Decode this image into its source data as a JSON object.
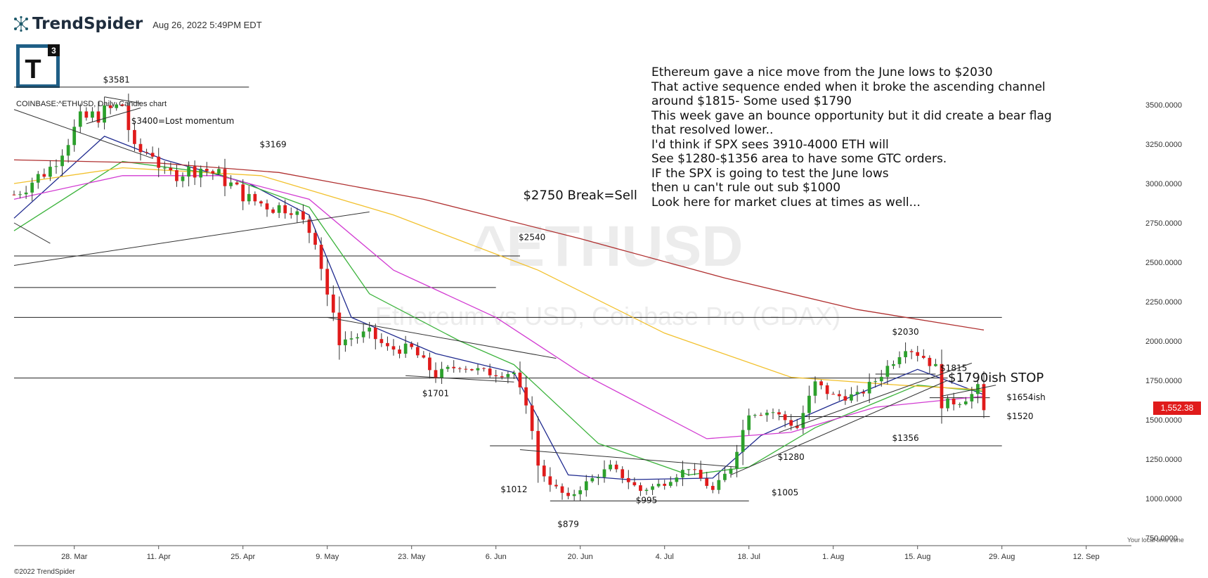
{
  "header": {
    "brand": "TrendSpider",
    "date": "Aug 26, 2022 5:49PM EDT",
    "logo_letter": "T",
    "logo_superscript": "3",
    "symbol_line": "COINBASE:^ETHUSD, Daily, Candles chart"
  },
  "watermark": {
    "symbol": "^ETHUSD",
    "subtitle": "Ethereum vs USD, Coinbase Pro (GDAX)"
  },
  "notes": [
    "Ethereum gave a nice move from the June lows to $2030",
    "That active sequence ended when it broke the ascending channel",
    "around $1815- Some used $1790",
    "This week gave an bounce opportunity but it did create a bear flag",
    "that resolved lower..",
    "I'd think if SPX sees 3910-4000 ETH will",
    "See $1280-$1356 area to have some GTC orders.",
    "IF the SPX is going to test the June lows",
    "then u can't rule out sub $1000",
    "Look here for market clues at times as well..."
  ],
  "footer": {
    "copyright": "©2022 TrendSpider",
    "timezone_note": "Your local time zone"
  },
  "current_price": "1,552.38",
  "colors": {
    "up": "#2ca02c",
    "down": "#e01b1b",
    "ma_fast": "#1f2a8f",
    "ma_green": "#3cb33c",
    "ma_magenta": "#d23bd2",
    "ma_yellow": "#f2c12e",
    "ma_red": "#b03030",
    "watermark": "#ececec"
  },
  "chart_data": {
    "type": "candlestick",
    "yaxis": {
      "ylim": [
        750,
        3750
      ],
      "ticks": [
        750,
        1000,
        1250,
        1500,
        1750,
        2000,
        2250,
        2500,
        2750,
        3000,
        3250,
        3500
      ],
      "tick_labels": [
        "750.0000",
        "1000.0000",
        "1250.0000",
        "1500.0000",
        "1750.0000",
        "2000.0000",
        "2250.0000",
        "2500.0000",
        "2750.0000",
        "3000.0000",
        "3250.0000",
        "3500.0000"
      ]
    },
    "xaxis": {
      "range": [
        "2022-03-18",
        "2022-09-16"
      ],
      "ticks": [
        "2022-03-28",
        "2022-04-11",
        "2022-04-25",
        "2022-05-09",
        "2022-05-23",
        "2022-06-06",
        "2022-06-20",
        "2022-07-04",
        "2022-07-18",
        "2022-08-01",
        "2022-08-15",
        "2022-08-29",
        "2022-09-12"
      ],
      "tick_labels": [
        "28. Mar",
        "11. Apr",
        "25. Apr",
        "9. May",
        "23. May",
        "6. Jun",
        "20. Jun",
        "4. Jul",
        "18. Jul",
        "1. Aug",
        "15. Aug",
        "29. Aug",
        "12. Sep"
      ]
    },
    "close_keypoints": [
      [
        "2022-03-18",
        2930
      ],
      [
        "2022-03-24",
        3100
      ],
      [
        "2022-03-29",
        3400
      ],
      [
        "2022-04-02",
        3450
      ],
      [
        "2022-04-05",
        3500
      ],
      [
        "2022-04-07",
        3200
      ],
      [
        "2022-04-10",
        3200
      ],
      [
        "2022-04-12",
        3050
      ],
      [
        "2022-04-18",
        3100
      ],
      [
        "2022-04-21",
        3050
      ],
      [
        "2022-04-26",
        2900
      ],
      [
        "2022-04-30",
        2850
      ],
      [
        "2022-05-03",
        2850
      ],
      [
        "2022-05-07",
        2650
      ],
      [
        "2022-05-09",
        2300
      ],
      [
        "2022-05-11",
        2000
      ],
      [
        "2022-05-16",
        2050
      ],
      [
        "2022-05-19",
        1950
      ],
      [
        "2022-05-23",
        1950
      ],
      [
        "2022-05-27",
        1780
      ],
      [
        "2022-05-31",
        1850
      ],
      [
        "2022-06-04",
        1800
      ],
      [
        "2022-06-09",
        1800
      ],
      [
        "2022-06-12",
        1450
      ],
      [
        "2022-06-13",
        1200
      ],
      [
        "2022-06-15",
        1100
      ],
      [
        "2022-06-18",
        1000
      ],
      [
        "2022-06-21",
        1100
      ],
      [
        "2022-06-25",
        1200
      ],
      [
        "2022-06-30",
        1050
      ],
      [
        "2022-07-04",
        1100
      ],
      [
        "2022-07-08",
        1200
      ],
      [
        "2022-07-12",
        1050
      ],
      [
        "2022-07-15",
        1200
      ],
      [
        "2022-07-18",
        1550
      ],
      [
        "2022-07-22",
        1550
      ],
      [
        "2022-07-26",
        1450
      ],
      [
        "2022-07-29",
        1730
      ],
      [
        "2022-08-01",
        1650
      ],
      [
        "2022-08-05",
        1650
      ],
      [
        "2022-08-08",
        1750
      ],
      [
        "2022-08-11",
        1880
      ],
      [
        "2022-08-13",
        1970
      ],
      [
        "2022-08-16",
        1900
      ],
      [
        "2022-08-18",
        1830
      ],
      [
        "2022-08-19",
        1600
      ],
      [
        "2022-08-22",
        1620
      ],
      [
        "2022-08-24",
        1660
      ],
      [
        "2022-08-25",
        1700
      ],
      [
        "2022-08-26",
        1552
      ]
    ],
    "moving_averages": [
      {
        "color_key": "ma_fast",
        "points": [
          [
            "2022-03-18",
            2780
          ],
          [
            "2022-04-02",
            3300
          ],
          [
            "2022-04-12",
            3150
          ],
          [
            "2022-04-26",
            3000
          ],
          [
            "2022-05-06",
            2800
          ],
          [
            "2022-05-13",
            2150
          ],
          [
            "2022-05-27",
            1920
          ],
          [
            "2022-06-09",
            1800
          ],
          [
            "2022-06-18",
            1150
          ],
          [
            "2022-06-28",
            1120
          ],
          [
            "2022-07-12",
            1130
          ],
          [
            "2022-07-20",
            1400
          ],
          [
            "2022-08-01",
            1600
          ],
          [
            "2022-08-15",
            1820
          ],
          [
            "2022-08-26",
            1660
          ]
        ]
      },
      {
        "color_key": "ma_green",
        "points": [
          [
            "2022-03-18",
            2700
          ],
          [
            "2022-04-05",
            3140
          ],
          [
            "2022-04-21",
            3060
          ],
          [
            "2022-05-06",
            2850
          ],
          [
            "2022-05-16",
            2300
          ],
          [
            "2022-05-31",
            2000
          ],
          [
            "2022-06-09",
            1850
          ],
          [
            "2022-06-23",
            1350
          ],
          [
            "2022-07-08",
            1150
          ],
          [
            "2022-07-18",
            1200
          ],
          [
            "2022-07-29",
            1450
          ],
          [
            "2022-08-15",
            1720
          ],
          [
            "2022-08-26",
            1680
          ]
        ]
      },
      {
        "color_key": "ma_magenta",
        "points": [
          [
            "2022-03-18",
            2900
          ],
          [
            "2022-04-05",
            3050
          ],
          [
            "2022-04-21",
            3050
          ],
          [
            "2022-05-06",
            2900
          ],
          [
            "2022-05-20",
            2450
          ],
          [
            "2022-06-06",
            2150
          ],
          [
            "2022-06-20",
            1800
          ],
          [
            "2022-07-11",
            1380
          ],
          [
            "2022-07-25",
            1420
          ],
          [
            "2022-08-08",
            1580
          ],
          [
            "2022-08-26",
            1650
          ]
        ]
      },
      {
        "color_key": "ma_yellow",
        "points": [
          [
            "2022-03-18",
            3000
          ],
          [
            "2022-04-05",
            3100
          ],
          [
            "2022-04-28",
            3050
          ],
          [
            "2022-05-20",
            2800
          ],
          [
            "2022-06-13",
            2450
          ],
          [
            "2022-07-04",
            2050
          ],
          [
            "2022-07-25",
            1770
          ],
          [
            "2022-08-12",
            1720
          ],
          [
            "2022-08-26",
            1690
          ]
        ]
      },
      {
        "color_key": "ma_red",
        "points": [
          [
            "2022-03-18",
            3150
          ],
          [
            "2022-04-11",
            3130
          ],
          [
            "2022-05-01",
            3070
          ],
          [
            "2022-05-25",
            2900
          ],
          [
            "2022-06-20",
            2650
          ],
          [
            "2022-07-14",
            2400
          ],
          [
            "2022-08-05",
            2200
          ],
          [
            "2022-08-26",
            2070
          ]
        ]
      }
    ],
    "horizontal_lines": [
      {
        "y": 3612,
        "x": [
          "2022-03-18",
          "2022-04-26"
        ]
      },
      {
        "y": 2540,
        "x": [
          "2022-03-18",
          "2022-06-10"
        ]
      },
      {
        "y": 2340,
        "x": [
          "2022-03-18",
          "2022-06-06"
        ]
      },
      {
        "y": 2150,
        "x": [
          "2022-03-18",
          "2022-08-29"
        ]
      },
      {
        "y": 1765,
        "x": [
          "2022-03-18",
          "2022-08-20"
        ]
      },
      {
        "y": 1335,
        "x": [
          "2022-06-05",
          "2022-08-29"
        ]
      },
      {
        "y": 1520,
        "x": [
          "2022-07-23",
          "2022-08-27"
        ]
      },
      {
        "y": 1640,
        "x": [
          "2022-08-17",
          "2022-08-27"
        ]
      },
      {
        "y": 1790,
        "x": [
          "2022-08-08",
          "2022-08-18"
        ]
      },
      {
        "y": 985,
        "x": [
          "2022-06-15",
          "2022-07-18"
        ]
      }
    ],
    "trend_lines": [
      {
        "from": [
          "2022-03-18",
          3470
        ],
        "to": [
          "2022-04-10",
          3160
        ]
      },
      {
        "from": [
          "2022-03-18",
          2750
        ],
        "to": [
          "2022-03-24",
          2620
        ]
      },
      {
        "from": [
          "2022-03-18",
          2480
        ],
        "to": [
          "2022-05-16",
          2820
        ]
      },
      {
        "from": [
          "2022-03-30",
          3380
        ],
        "to": [
          "2022-04-08",
          3480
        ]
      },
      {
        "from": [
          "2022-04-02",
          3550
        ],
        "to": [
          "2022-04-08",
          3510
        ]
      },
      {
        "from": [
          "2022-05-09",
          2150
        ],
        "to": [
          "2022-06-16",
          1890
        ]
      },
      {
        "from": [
          "2022-05-22",
          1780
        ],
        "to": [
          "2022-06-09",
          1740
        ]
      },
      {
        "from": [
          "2022-06-10",
          1310
        ],
        "to": [
          "2022-07-16",
          1200
        ]
      },
      {
        "from": [
          "2022-07-15",
          1150
        ],
        "to": [
          "2022-08-20",
          1750
        ]
      },
      {
        "from": [
          "2022-07-23",
          1420
        ],
        "to": [
          "2022-08-24",
          1860
        ]
      },
      {
        "from": [
          "2022-08-19",
          1650
        ],
        "to": [
          "2022-08-28",
          1720
        ]
      }
    ],
    "annotations": [
      {
        "text": "$3581",
        "x": "2022-04-04",
        "y": 3640,
        "size": 12
      },
      {
        "text": "$3400=Lost momentum",
        "x": "2022-04-15",
        "y": 3380,
        "size": 12
      },
      {
        "text": "$3169",
        "x": "2022-04-30",
        "y": 3230,
        "size": 12
      },
      {
        "text": "$2750 Break=Sell",
        "x": "2022-06-20",
        "y": 2900,
        "size": 18
      },
      {
        "text": "$2540",
        "x": "2022-06-12",
        "y": 2640,
        "size": 12
      },
      {
        "text": "$2030",
        "x": "2022-08-13",
        "y": 2040,
        "size": 12
      },
      {
        "text": "$1815",
        "x": "2022-08-21",
        "y": 1810,
        "size": 12
      },
      {
        "text": "$1790ish STOP",
        "x": "2022-08-28",
        "y": 1740,
        "size": 18
      },
      {
        "text": "$1654ish",
        "x": "2022-09-02",
        "y": 1625,
        "size": 12
      },
      {
        "text": "$1520",
        "x": "2022-09-01",
        "y": 1505,
        "size": 12
      },
      {
        "text": "$1356",
        "x": "2022-08-13",
        "y": 1365,
        "size": 12
      },
      {
        "text": "$1280",
        "x": "2022-07-25",
        "y": 1245,
        "size": 12
      },
      {
        "text": "$1701",
        "x": "2022-05-27",
        "y": 1650,
        "size": 12
      },
      {
        "text": "$1012",
        "x": "2022-06-09",
        "y": 1040,
        "size": 12
      },
      {
        "text": "$995",
        "x": "2022-07-01",
        "y": 970,
        "size": 12
      },
      {
        "text": "$1005",
        "x": "2022-07-24",
        "y": 1020,
        "size": 12
      },
      {
        "text": "$879",
        "x": "2022-06-18",
        "y": 820,
        "size": 12
      }
    ]
  }
}
